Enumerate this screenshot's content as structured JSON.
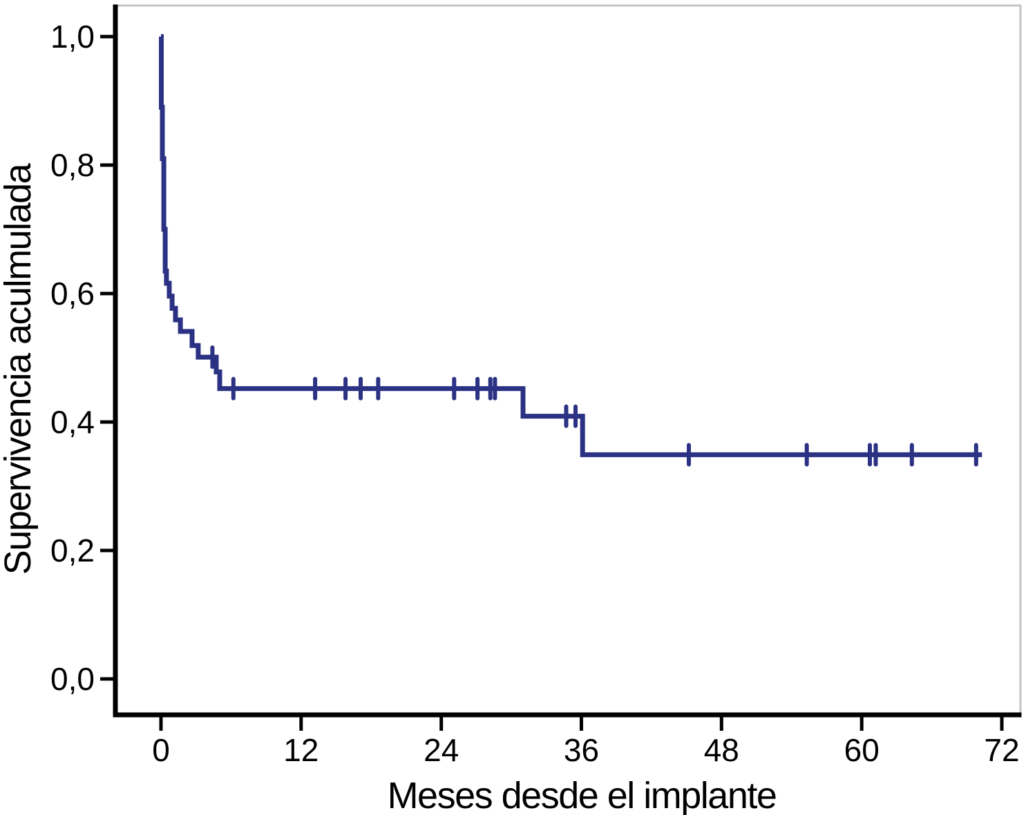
{
  "page": {
    "background": "#ffffff"
  },
  "chart_data": {
    "type": "line",
    "subtype": "kaplan-meier-step",
    "title": "",
    "xlabel": "Meses desde el implante",
    "ylabel": "Supervivencia aculmulada",
    "xlim": [
      0,
      72
    ],
    "ylim": [
      0,
      1
    ],
    "grid": false,
    "legend": null,
    "axis_color": "#000000",
    "frame_color": "#c4c4c4",
    "x_ticks": {
      "values": [
        0,
        12,
        24,
        36,
        48,
        60,
        72
      ],
      "labels": [
        "0",
        "12",
        "24",
        "36",
        "48",
        "60",
        "72"
      ]
    },
    "y_ticks": {
      "values": [
        0,
        0.2,
        0.4,
        0.6,
        0.8,
        1.0
      ],
      "labels": [
        "0,0",
        "0,2",
        "0,4",
        "0,6",
        "0,8",
        "1,0"
      ]
    },
    "series": [
      {
        "name": "Supervivencia acumulada",
        "color": "#2b3183",
        "steps": [
          [
            0,
            1.0
          ],
          [
            0.03,
            0.89
          ],
          [
            0.12,
            0.81
          ],
          [
            0.24,
            0.7
          ],
          [
            0.36,
            0.635
          ],
          [
            0.47,
            0.616
          ],
          [
            0.71,
            0.596
          ],
          [
            0.95,
            0.577
          ],
          [
            1.24,
            0.559
          ],
          [
            1.66,
            0.541
          ],
          [
            2.66,
            0.519
          ],
          [
            3.19,
            0.501
          ],
          [
            4.73,
            0.478
          ],
          [
            5.03,
            0.452
          ],
          [
            31.0,
            0.409
          ],
          [
            36.1,
            0.349
          ]
        ],
        "end_time": 70.3,
        "censored": [
          [
            4.4,
            0.501
          ],
          [
            6.2,
            0.452
          ],
          [
            13.2,
            0.452
          ],
          [
            15.8,
            0.452
          ],
          [
            17.1,
            0.452
          ],
          [
            18.6,
            0.452
          ],
          [
            25.1,
            0.452
          ],
          [
            27.1,
            0.452
          ],
          [
            28.2,
            0.452
          ],
          [
            28.6,
            0.452
          ],
          [
            34.7,
            0.409
          ],
          [
            35.5,
            0.409
          ],
          [
            45.2,
            0.349
          ],
          [
            55.3,
            0.349
          ],
          [
            60.7,
            0.349
          ],
          [
            61.2,
            0.349
          ],
          [
            64.3,
            0.349
          ],
          [
            69.8,
            0.349
          ]
        ]
      }
    ]
  }
}
